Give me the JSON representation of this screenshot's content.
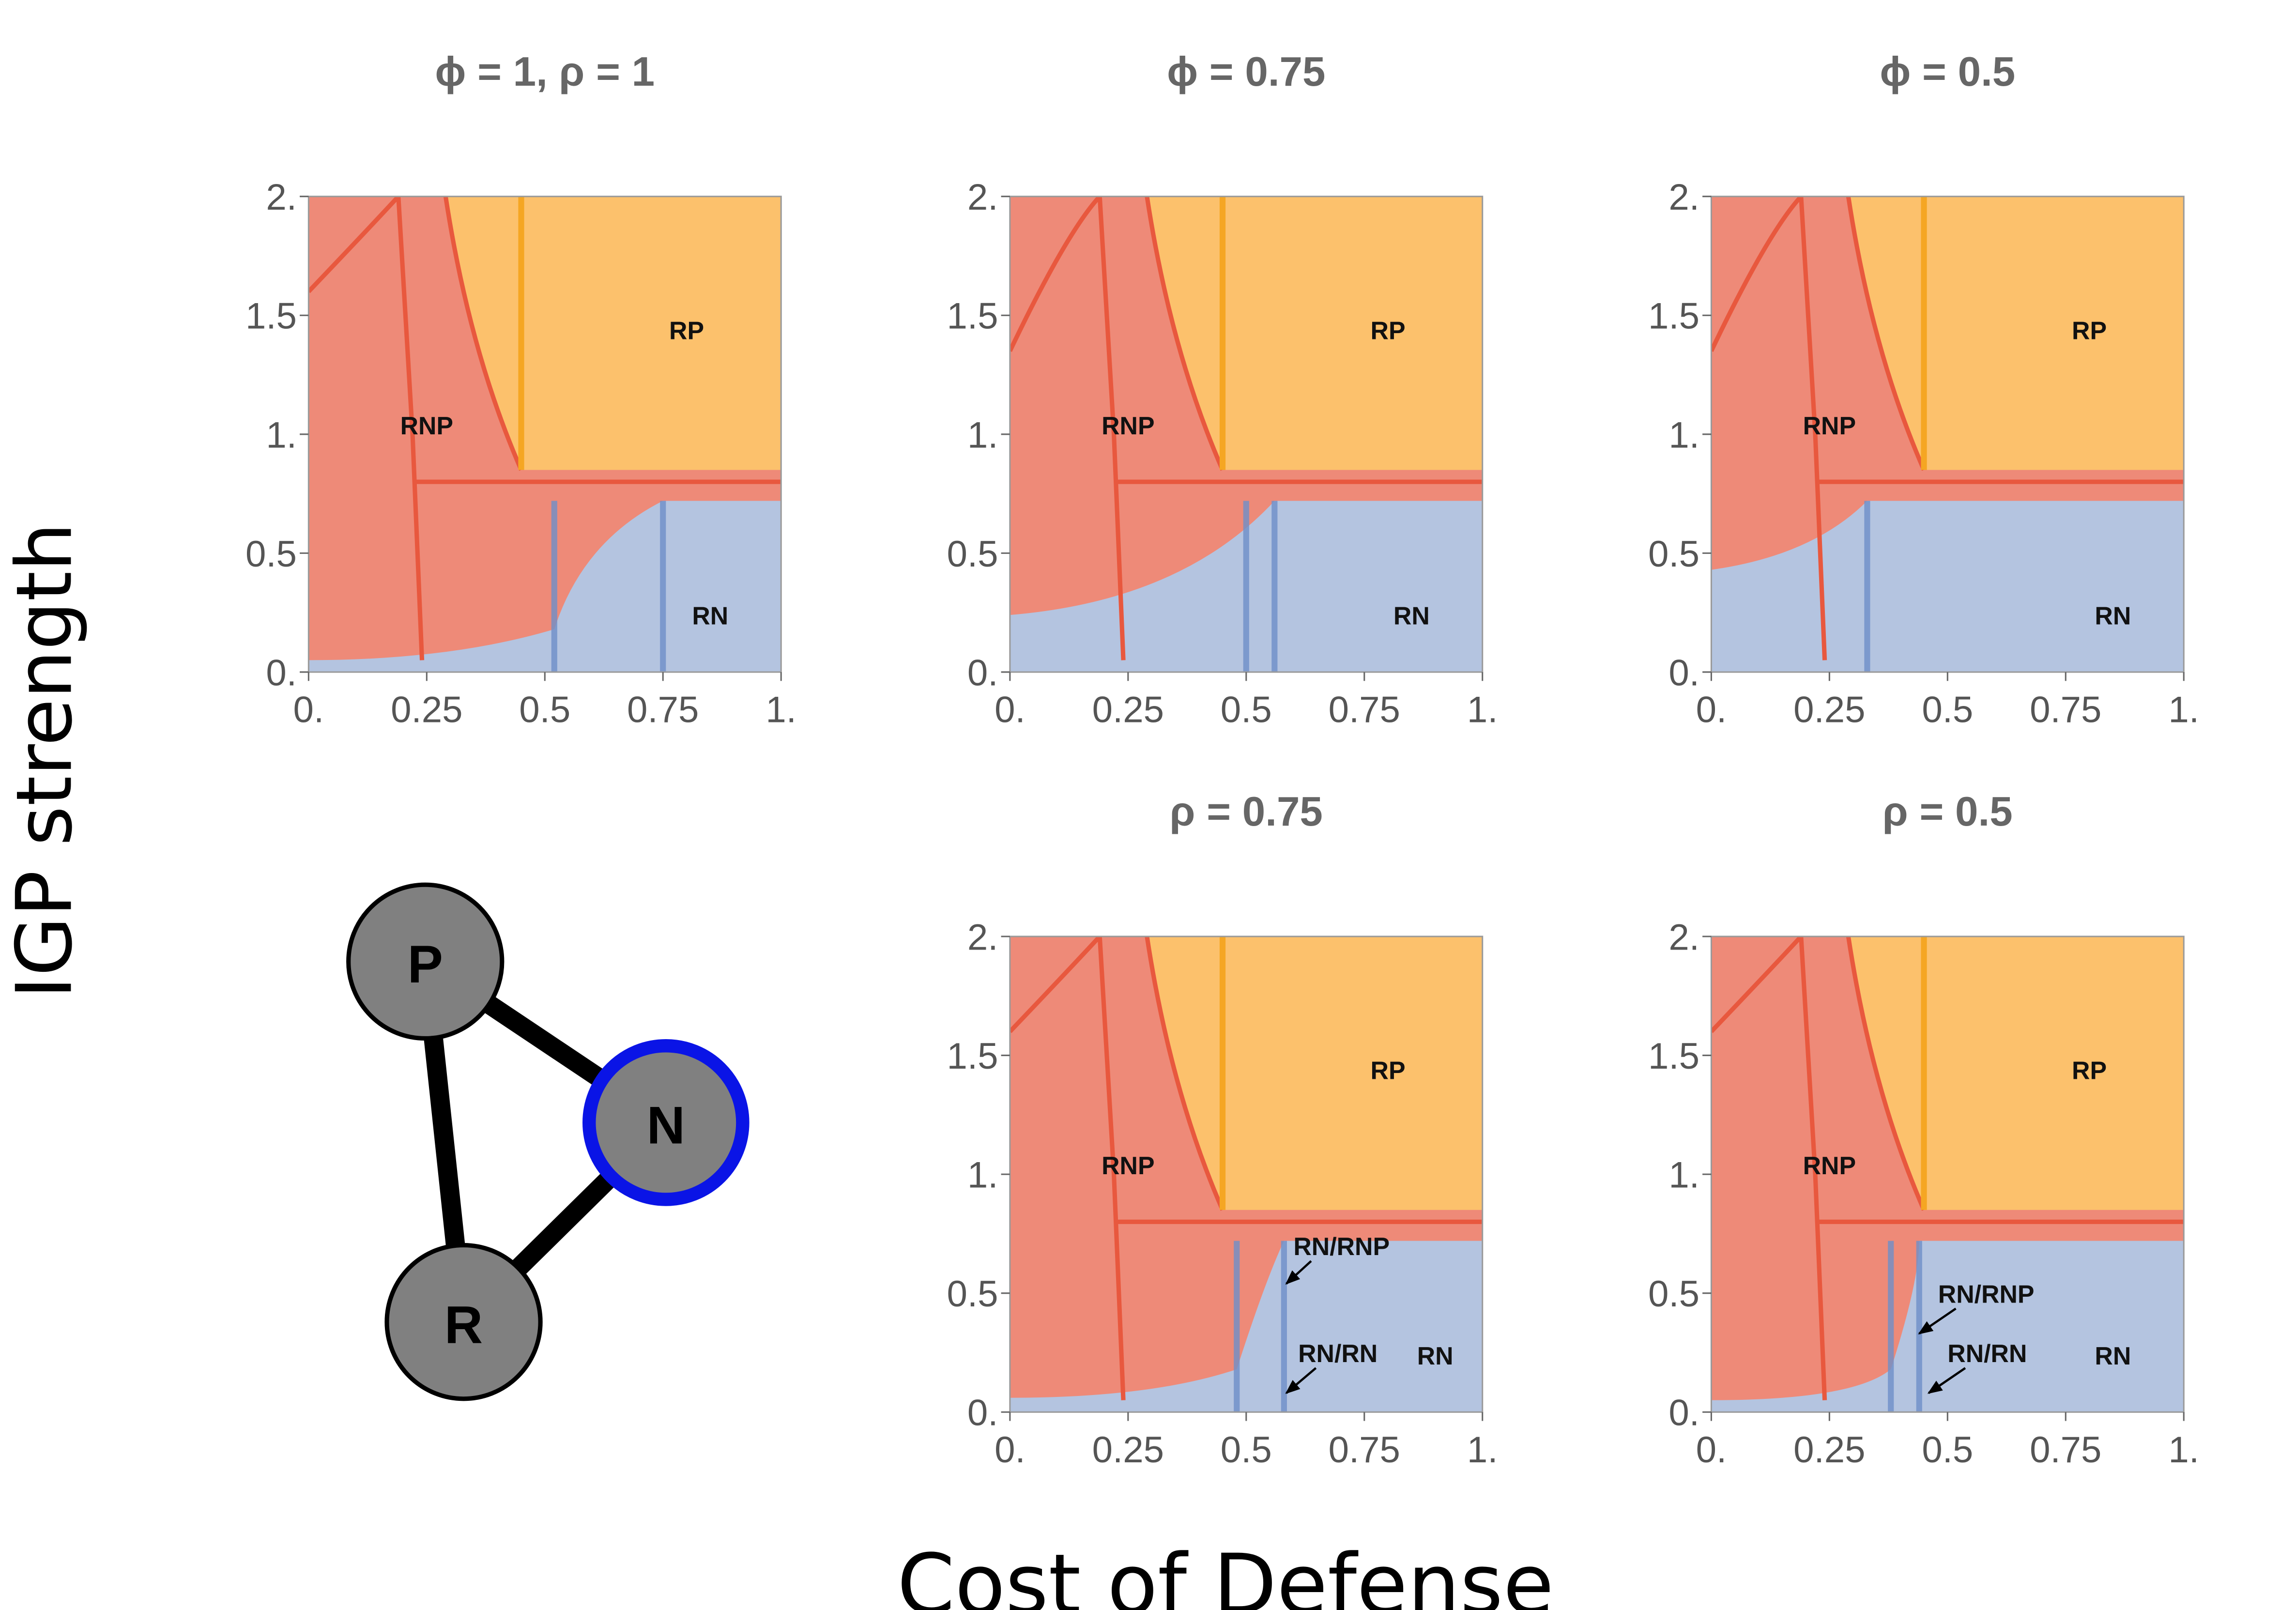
{
  "figure": {
    "xlabel": "Cost of Defense",
    "ylabel": "IGP strength"
  },
  "colors": {
    "RP": "#fcc16c",
    "RNP": "#ee8a78",
    "RN": "#b4c4e0",
    "RNP_edge": "#e8583e",
    "RP_edge": "#f5a623",
    "RN_edge": "#6f8fc9",
    "node_fill": "#808080",
    "node_edge": "#000000",
    "highlight_edge": "#0a14e6"
  },
  "network": {
    "nodes": [
      {
        "id": "P",
        "label": "P",
        "highlighted": false
      },
      {
        "id": "N",
        "label": "N",
        "highlighted": true
      },
      {
        "id": "R",
        "label": "R",
        "highlighted": false
      }
    ],
    "edges": [
      [
        "P",
        "N"
      ],
      [
        "P",
        "R"
      ],
      [
        "R",
        "N"
      ]
    ]
  },
  "chart_data": [
    {
      "type": "heatmap",
      "title": "ϕ = 1, ρ = 1",
      "xlim": [
        0,
        1
      ],
      "ylim": [
        0,
        2
      ],
      "xticks": [
        "0.",
        "0.25",
        "0.5",
        "0.75",
        "1."
      ],
      "yticks": [
        "0.",
        "0.5",
        "1.",
        "1.5",
        "2."
      ],
      "regions": [
        {
          "name": "RNP",
          "label": "RNP",
          "label_at": [
            0.25,
            1.0
          ]
        },
        {
          "name": "RP",
          "label": "RP",
          "label_at": [
            0.8,
            1.4
          ]
        },
        {
          "name": "RN",
          "label": "RN",
          "label_at": [
            0.85,
            0.2
          ]
        }
      ],
      "boundaries": {
        "rp_vertical_x": 0.45,
        "rp_lower_y": 0.85,
        "rn_upper_y": 0.72,
        "igp_curve_intercept": 0.05,
        "rn_vertical_x": [
          0.52,
          0.75
        ]
      },
      "annotations": []
    },
    {
      "type": "heatmap",
      "title": "ϕ = 0.75",
      "xlim": [
        0,
        1
      ],
      "ylim": [
        0,
        2
      ],
      "xticks": [
        "0.",
        "0.25",
        "0.5",
        "0.75",
        "1."
      ],
      "yticks": [
        "0.",
        "0.5",
        "1.",
        "1.5",
        "2."
      ],
      "regions": [
        {
          "name": "RNP",
          "label": "RNP",
          "label_at": [
            0.25,
            1.0
          ]
        },
        {
          "name": "RP",
          "label": "RP",
          "label_at": [
            0.8,
            1.4
          ]
        },
        {
          "name": "RN",
          "label": "RN",
          "label_at": [
            0.85,
            0.2
          ]
        }
      ],
      "boundaries": {
        "rp_vertical_x": 0.45,
        "rp_lower_y": 0.85,
        "rn_upper_y": 0.72,
        "igp_curve_intercept": 0.24,
        "rn_vertical_x": [
          0.5,
          0.56
        ]
      },
      "annotations": []
    },
    {
      "type": "heatmap",
      "title": "ϕ = 0.5",
      "xlim": [
        0,
        1
      ],
      "ylim": [
        0,
        2
      ],
      "xticks": [
        "0.",
        "0.25",
        "0.5",
        "0.75",
        "1."
      ],
      "yticks": [
        "0.",
        "0.5",
        "1.",
        "1.5",
        "2."
      ],
      "regions": [
        {
          "name": "RNP",
          "label": "RNP",
          "label_at": [
            0.25,
            1.0
          ]
        },
        {
          "name": "RP",
          "label": "RP",
          "label_at": [
            0.8,
            1.4
          ]
        },
        {
          "name": "RN",
          "label": "RN",
          "label_at": [
            0.85,
            0.2
          ]
        }
      ],
      "boundaries": {
        "rp_vertical_x": 0.45,
        "rp_lower_y": 0.85,
        "rn_upper_y": 0.72,
        "igp_curve_intercept": 0.43,
        "rn_vertical_x": [
          0.33
        ]
      },
      "annotations": []
    },
    {
      "type": "heatmap",
      "title": "ρ = 0.75",
      "xlim": [
        0,
        1
      ],
      "ylim": [
        0,
        2
      ],
      "xticks": [
        "0.",
        "0.25",
        "0.5",
        "0.75",
        "1."
      ],
      "yticks": [
        "0.",
        "0.5",
        "1.",
        "1.5",
        "2."
      ],
      "regions": [
        {
          "name": "RNP",
          "label": "RNP",
          "label_at": [
            0.25,
            1.0
          ]
        },
        {
          "name": "RP",
          "label": "RP",
          "label_at": [
            0.8,
            1.4
          ]
        },
        {
          "name": "RN",
          "label": "RN",
          "label_at": [
            0.9,
            0.2
          ]
        }
      ],
      "boundaries": {
        "rp_vertical_x": 0.45,
        "rp_lower_y": 0.85,
        "rn_upper_y": 0.72,
        "igp_curve_intercept": 0.06,
        "rn_vertical_x": [
          0.48,
          0.58
        ]
      },
      "annotations": [
        {
          "text": "RN/RNP",
          "label_at": [
            0.6,
            0.66
          ],
          "arrow_to": [
            0.585,
            0.54
          ]
        },
        {
          "text": "RN/RN",
          "label_at": [
            0.61,
            0.21
          ],
          "arrow_to": [
            0.585,
            0.08
          ]
        }
      ]
    },
    {
      "type": "heatmap",
      "title": "ρ = 0.5",
      "xlim": [
        0,
        1
      ],
      "ylim": [
        0,
        2
      ],
      "xticks": [
        "0.",
        "0.25",
        "0.5",
        "0.75",
        "1."
      ],
      "yticks": [
        "0.",
        "0.5",
        "1.",
        "1.5",
        "2."
      ],
      "regions": [
        {
          "name": "RNP",
          "label": "RNP",
          "label_at": [
            0.25,
            1.0
          ]
        },
        {
          "name": "RP",
          "label": "RP",
          "label_at": [
            0.8,
            1.4
          ]
        },
        {
          "name": "RN",
          "label": "RN",
          "label_at": [
            0.85,
            0.2
          ]
        }
      ],
      "boundaries": {
        "rp_vertical_x": 0.45,
        "rp_lower_y": 0.85,
        "rn_upper_y": 0.72,
        "igp_curve_intercept": 0.05,
        "rn_vertical_x": [
          0.38,
          0.44
        ]
      },
      "annotations": [
        {
          "text": "RN/RNP",
          "label_at": [
            0.48,
            0.46
          ],
          "arrow_to": [
            0.44,
            0.33
          ]
        },
        {
          "text": "RN/RN",
          "label_at": [
            0.5,
            0.21
          ],
          "arrow_to": [
            0.46,
            0.08
          ]
        }
      ]
    }
  ]
}
